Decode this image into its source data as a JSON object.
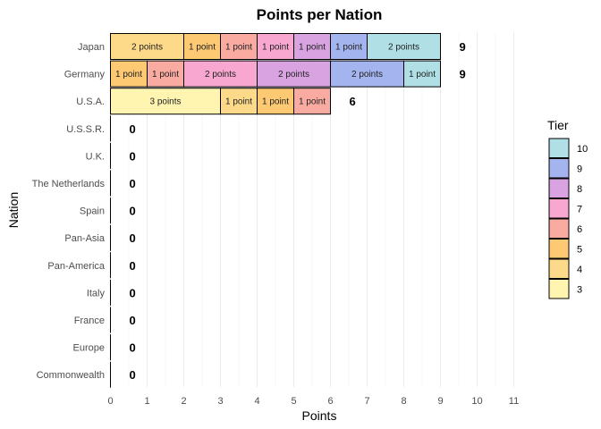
{
  "chart_data": {
    "type": "bar",
    "orientation": "horizontal",
    "stacked": true,
    "title": "Points per Nation",
    "xlabel": "Points",
    "ylabel": "Nation",
    "xlim": [
      0,
      11
    ],
    "xticks": [
      0,
      1,
      2,
      3,
      4,
      5,
      6,
      7,
      8,
      9,
      10,
      11
    ],
    "grid": "vertical",
    "legend": {
      "title": "Tier",
      "position": "right"
    },
    "tiers": [
      {
        "tier": "10",
        "color": "#b0e0e6"
      },
      {
        "tier": "9",
        "color": "#a4b4ee"
      },
      {
        "tier": "8",
        "color": "#d9a3e2"
      },
      {
        "tier": "7",
        "color": "#f8a8d0"
      },
      {
        "tier": "6",
        "color": "#f9aba2"
      },
      {
        "tier": "5",
        "color": "#fdc972"
      },
      {
        "tier": "4",
        "color": "#fdda8a"
      },
      {
        "tier": "3",
        "color": "#fff5b1"
      }
    ],
    "nations": [
      {
        "name": "Japan",
        "total": 9,
        "segments": [
          {
            "tier": "4",
            "points": 2,
            "label": "2 points"
          },
          {
            "tier": "5",
            "points": 1,
            "label": "1 point"
          },
          {
            "tier": "6",
            "points": 1,
            "label": "1 point"
          },
          {
            "tier": "7",
            "points": 1,
            "label": "1 point"
          },
          {
            "tier": "8",
            "points": 1,
            "label": "1 point"
          },
          {
            "tier": "9",
            "points": 1,
            "label": "1 point"
          },
          {
            "tier": "10",
            "points": 2,
            "label": "2 points"
          }
        ]
      },
      {
        "name": "Germany",
        "total": 9,
        "segments": [
          {
            "tier": "5",
            "points": 1,
            "label": "1 point"
          },
          {
            "tier": "6",
            "points": 1,
            "label": "1 point"
          },
          {
            "tier": "7",
            "points": 2,
            "label": "2 points"
          },
          {
            "tier": "8",
            "points": 2,
            "label": "2 points"
          },
          {
            "tier": "9",
            "points": 2,
            "label": "2 points"
          },
          {
            "tier": "10",
            "points": 1,
            "label": "1 point"
          }
        ]
      },
      {
        "name": "U.S.A.",
        "total": 6,
        "segments": [
          {
            "tier": "3",
            "points": 3,
            "label": "3 points"
          },
          {
            "tier": "4",
            "points": 1,
            "label": "1 point"
          },
          {
            "tier": "5",
            "points": 1,
            "label": "1 point"
          },
          {
            "tier": "6",
            "points": 1,
            "label": "1 point"
          }
        ]
      },
      {
        "name": "U.S.S.R.",
        "total": 0,
        "segments": []
      },
      {
        "name": "U.K.",
        "total": 0,
        "segments": []
      },
      {
        "name": "The Netherlands",
        "total": 0,
        "segments": []
      },
      {
        "name": "Spain",
        "total": 0,
        "segments": []
      },
      {
        "name": "Pan-Asia",
        "total": 0,
        "segments": []
      },
      {
        "name": "Pan-America",
        "total": 0,
        "segments": []
      },
      {
        "name": "Italy",
        "total": 0,
        "segments": []
      },
      {
        "name": "France",
        "total": 0,
        "segments": []
      },
      {
        "name": "Europe",
        "total": 0,
        "segments": []
      },
      {
        "name": "Commonwealth",
        "total": 0,
        "segments": []
      }
    ]
  }
}
